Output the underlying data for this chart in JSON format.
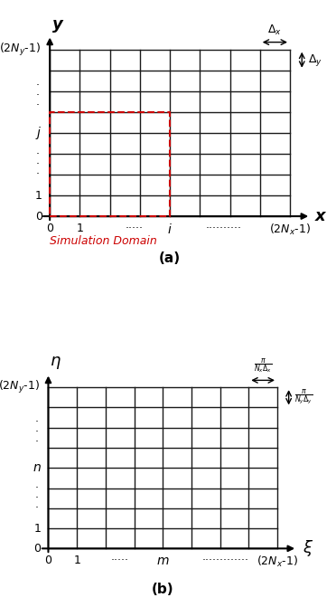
{
  "fig_width": 3.72,
  "fig_height": 6.71,
  "dpi": 100,
  "grid_color": "#1a1a1a",
  "grid_linewidth": 1.0,
  "axis_linewidth": 1.5,
  "n_cols": 8,
  "n_rows": 8,
  "panel_a": {
    "xlabel": "x",
    "ylabel": "y",
    "x_tick_labels": [
      "0",
      "1",
      "\\u22ef\\u22ef\\u22ef",
      "i",
      "\\u22ef\\u22ef\\u22ef\\u22ef\\u22ef\\u22ef",
      "(2N_x-1)"
    ],
    "y_tick_labels": [
      "0",
      "1",
      "\\u22ef\\u22ef\\u22ef",
      "j",
      "\\u22ef\\u22ef\\u22ef",
      "(2N_y-1)"
    ],
    "delta_x_label": "\\u0394_x",
    "delta_y_label": "\\u0394_y",
    "sim_domain_label": "Simulation Domain",
    "sim_domain_color": "#cc0000",
    "label": "(a)"
  },
  "panel_b": {
    "xlabel": "\\u03be",
    "ylabel": "\\u03b7",
    "x_tick_labels": [
      "0",
      "1",
      "\\u22ef\\u22ef\\u22ef",
      "m",
      "\\u22ef\\u22ef\\u22ef\\u22ef\\u22ef\\u22ef\\u22ef\\u22ef\\u22ef",
      "(2N_x-1)"
    ],
    "y_tick_labels": [
      "0",
      "1",
      "\\u22ef\\u22ef\\u22ef",
      "n",
      "\\u22ef\\u22ef\\u22ef",
      "(2N_y-1)"
    ],
    "delta_x_label": "\\u03c0 / N_x\\u0394_x",
    "delta_y_label": "\\u03c0 / N_y\\u0394_y",
    "label": "(b)"
  },
  "background_color": "#ffffff",
  "text_color": "#000000"
}
